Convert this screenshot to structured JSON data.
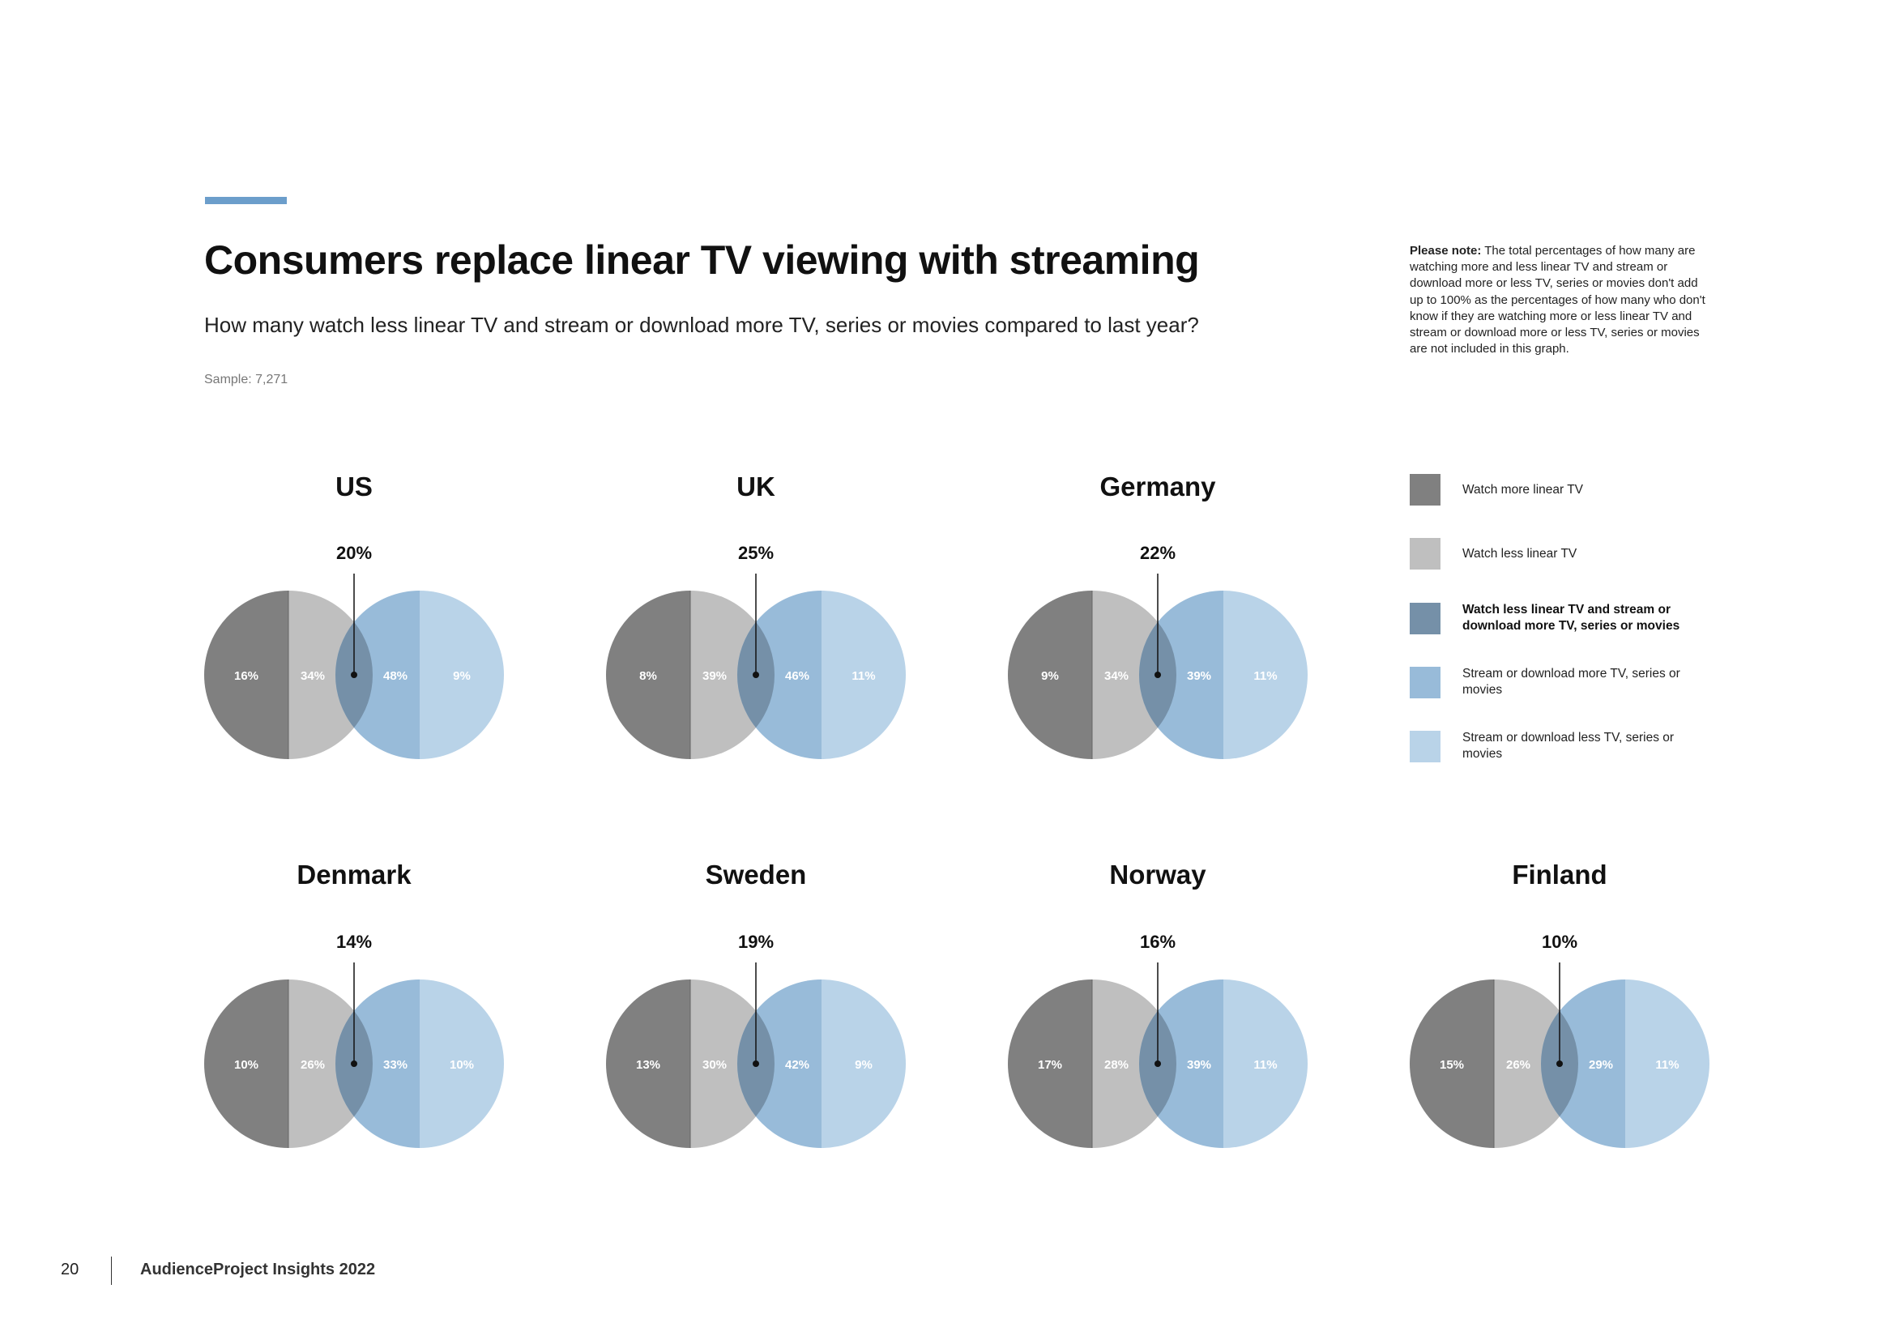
{
  "header": {
    "title": "Consumers replace linear TV viewing with streaming",
    "subtitle": "How many watch less linear TV and stream or download more TV, series or movies compared to last year?",
    "sample": "Sample: 7,271",
    "accent_color": "#6c9ecb"
  },
  "note": {
    "label": "Please note:",
    "text": " The total percentages of how many are watching more and less linear TV and stream or download more or less TV, series or movies don't add up to 100% as the percentages of how many who don't know if they are watching more or less linear TV and stream or download more or less TV, series or movies are not included in this graph."
  },
  "footer": {
    "page_number": "20",
    "brand": "AudienceProject Insights 2022"
  },
  "chart_data": {
    "type": "venn",
    "legend_placement": "right",
    "legend": [
      {
        "label": "Watch more linear TV",
        "color": "#808080"
      },
      {
        "label": "Watch less linear TV",
        "color": "#bfbfbf"
      },
      {
        "label": "Watch less linear TV and stream or download more TV, series or movies",
        "color": "#7590a8",
        "bold": true
      },
      {
        "label": "Stream or download more TV, series or movies",
        "color": "#98bbd9"
      },
      {
        "label": "Stream or download less TV, series or movies",
        "color": "#b9d3e8"
      }
    ],
    "series_keys": [
      "watch_more_linear",
      "watch_less_linear",
      "stream_more",
      "stream_less",
      "overlap"
    ],
    "countries": [
      {
        "name": "US",
        "watch_more_linear": 16,
        "watch_less_linear": 34,
        "stream_more": 48,
        "stream_less": 9,
        "overlap": 20
      },
      {
        "name": "UK",
        "watch_more_linear": 8,
        "watch_less_linear": 39,
        "stream_more": 46,
        "stream_less": 11,
        "overlap": 25
      },
      {
        "name": "Germany",
        "watch_more_linear": 9,
        "watch_less_linear": 34,
        "stream_more": 39,
        "stream_less": 11,
        "overlap": 22
      },
      {
        "name": "Denmark",
        "watch_more_linear": 10,
        "watch_less_linear": 26,
        "stream_more": 33,
        "stream_less": 10,
        "overlap": 14
      },
      {
        "name": "Sweden",
        "watch_more_linear": 13,
        "watch_less_linear": 30,
        "stream_more": 42,
        "stream_less": 9,
        "overlap": 19
      },
      {
        "name": "Norway",
        "watch_more_linear": 17,
        "watch_less_linear": 28,
        "stream_more": 39,
        "stream_less": 11,
        "overlap": 16
      },
      {
        "name": "Finland",
        "watch_more_linear": 15,
        "watch_less_linear": 26,
        "stream_more": 29,
        "stream_less": 11,
        "overlap": 10
      }
    ]
  }
}
